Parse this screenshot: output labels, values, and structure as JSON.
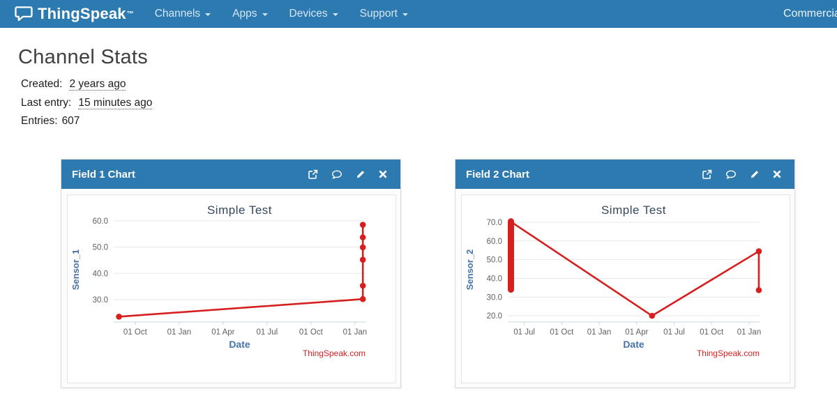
{
  "colors": {
    "accent_blue": "#2d7ab1",
    "series_red": "#d62020",
    "axis_title_blue": "#4572a7",
    "chart_title": "#33485d",
    "tick_label": "#606060",
    "grid": "#e7e7e7"
  },
  "navbar": {
    "brand": "ThingSpeak",
    "brand_tm": "™",
    "brand_icon": "speech-bubble-logo-icon",
    "items": [
      {
        "label": "Channels"
      },
      {
        "label": "Apps"
      },
      {
        "label": "Devices"
      },
      {
        "label": "Support"
      }
    ],
    "right_item": "Commercial Use"
  },
  "page": {
    "title": "Channel Stats",
    "stats": {
      "created_label": "Created:",
      "created_value": "2 years ago",
      "last_entry_label": "Last entry:",
      "last_entry_value": "15 minutes ago",
      "entries_label": "Entries:",
      "entries_value": "607"
    }
  },
  "panels": [
    {
      "title": "Field 1 Chart",
      "icons": [
        "external-link-icon",
        "comment-icon",
        "pencil-icon",
        "close-icon"
      ]
    },
    {
      "title": "Field 2 Chart",
      "icons": [
        "external-link-icon",
        "comment-icon",
        "pencil-icon",
        "close-icon"
      ]
    }
  ],
  "chart_data": [
    {
      "type": "line",
      "title": "Simple Test",
      "xlabel": "Date",
      "ylabel": "Sensor_1",
      "credits": "ThingSpeak.com",
      "x_tick_labels": [
        "01 Oct",
        "01 Jan",
        "01 Apr",
        "01 Jul",
        "01 Oct",
        "01 Jan"
      ],
      "x_range": [
        -0.49,
        5.24
      ],
      "y_ticks": [
        30,
        40,
        50,
        60
      ],
      "y_tick_labels": [
        "30.0",
        "40.0",
        "50.0",
        "60.0"
      ],
      "y_range": [
        21.5,
        61.3
      ],
      "points": [
        [
          -0.37,
          23.5
        ],
        [
          5.18,
          30.2
        ],
        [
          5.18,
          35.3
        ],
        [
          5.18,
          45.2
        ],
        [
          5.18,
          49.9
        ],
        [
          5.18,
          53.7
        ],
        [
          5.18,
          58.5
        ]
      ],
      "grid": true,
      "legend": false
    },
    {
      "type": "line",
      "title": "Simple Test",
      "xlabel": "Date",
      "ylabel": "Sensor_2",
      "credits": "ThingSpeak.com",
      "x_tick_labels": [
        "01 Jul",
        "01 Oct",
        "01 Jan",
        "01 Apr",
        "01 Jul",
        "01 Oct",
        "01 Jan"
      ],
      "x_range": [
        -0.44,
        6.28
      ],
      "y_ticks": [
        20,
        30,
        40,
        50,
        60,
        70
      ],
      "y_tick_labels": [
        "20.0",
        "30.0",
        "40.0",
        "50.0",
        "60.0",
        "70.0"
      ],
      "y_range": [
        16.7,
        72.6
      ],
      "points": [
        [
          -0.356,
          70.3
        ],
        [
          3.41,
          20.0
        ],
        [
          6.26,
          54.5
        ],
        [
          6.26,
          33.7
        ]
      ],
      "markers": [
        [
          3.41,
          20.0
        ],
        [
          6.26,
          54.5
        ],
        [
          6.26,
          33.7
        ]
      ],
      "cluster": {
        "x": -0.356,
        "y_min": 34.0,
        "y_max": 70.5
      },
      "grid": true,
      "legend": false
    }
  ]
}
